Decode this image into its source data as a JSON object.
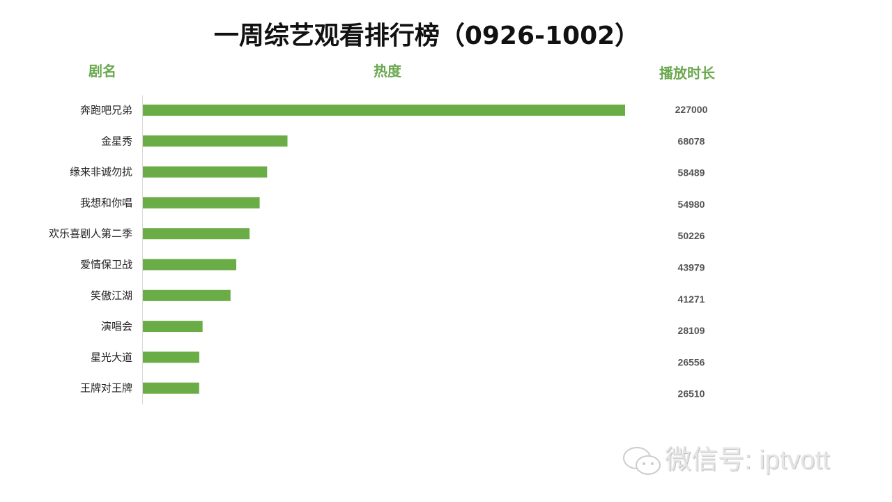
{
  "chart_data": {
    "type": "bar",
    "orientation": "horizontal",
    "title": "一周综艺观看排行榜（0926-1002）",
    "column_headers": {
      "name": "剧名",
      "heat": "热度",
      "duration": "播放时长"
    },
    "categories": [
      "奔跑吧兄弟",
      "金星秀",
      "缘来非诚勿扰",
      "我想和你唱",
      "欢乐喜剧人第二季",
      "爱情保卫战",
      "笑傲江湖",
      "演唱会",
      "星光大道",
      "王牌对王牌"
    ],
    "values": [
      227000,
      68078,
      58489,
      54980,
      50226,
      43979,
      41271,
      28109,
      26556,
      26510
    ],
    "xlim": [
      0,
      227000
    ],
    "bar_color": "#6aad46",
    "grid": false,
    "legend": "none"
  },
  "watermark": "微信号: iptvott"
}
